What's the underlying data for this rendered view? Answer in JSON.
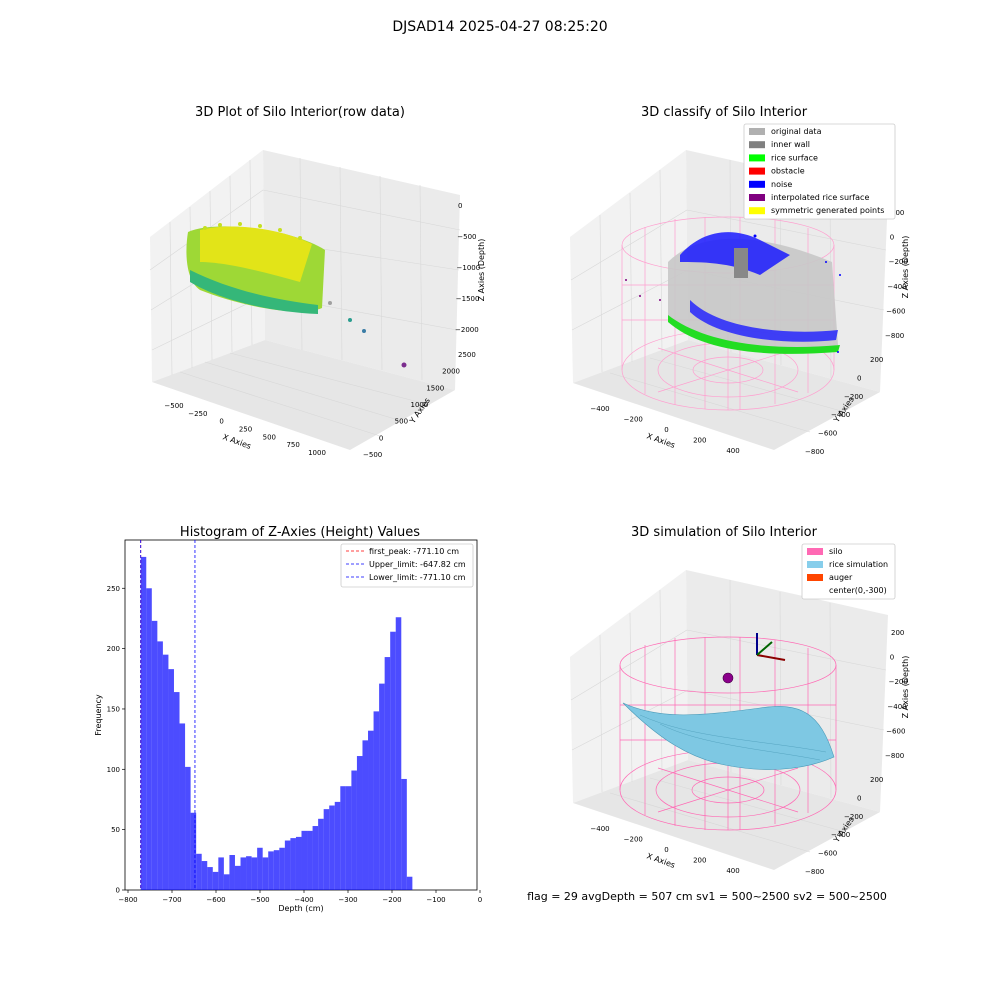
{
  "figure": {
    "title": "DJSAD14 2025-04-27 08:25:20",
    "status_line": "flag = 29  avgDepth = 507 cm  sv1 = 500~2500  sv2 = 500~2500"
  },
  "panels": {
    "raw": {
      "title": "3D Plot of Silo Interior(row data)",
      "xlabel": "X Axies",
      "ylabel": "Y Axies",
      "zlabel": "Z Axies (Depth)",
      "xticks": [
        "−500",
        "−250",
        "0",
        "250",
        "500",
        "750",
        "1000"
      ],
      "yticks": [
        "−500",
        "0",
        "500",
        "1000",
        "1500",
        "2000",
        "2500"
      ],
      "zticks": [
        "0",
        "−500",
        "−1000",
        "−1500",
        "−2000"
      ]
    },
    "classify": {
      "title": "3D classify of Silo Interior",
      "xlabel": "X Axies",
      "ylabel": "Y Axies",
      "zlabel": "Z Axies (Depth)",
      "xticks": [
        "−400",
        "−200",
        "0",
        "200",
        "400"
      ],
      "yticks": [
        "200",
        "0",
        "−200",
        "−400",
        "−600",
        "−800"
      ],
      "zticks": [
        "200",
        "0",
        "−200",
        "−400",
        "−600",
        "−800"
      ],
      "legend": [
        {
          "label": "original data",
          "color": "#b0b0b0"
        },
        {
          "label": "inner wall",
          "color": "#808080"
        },
        {
          "label": "rice surface",
          "color": "#00ff00"
        },
        {
          "label": "obstacle",
          "color": "#ff0000"
        },
        {
          "label": "noise",
          "color": "#0000ff"
        },
        {
          "label": "interpolated rice surface",
          "color": "#800080"
        },
        {
          "label": "symmetric generated points",
          "color": "#ffff00"
        }
      ]
    },
    "simulation": {
      "title": "3D simulation of Silo Interior",
      "xlabel": "X Axies",
      "ylabel": "Y Axies",
      "zlabel": "Z Axies (Depth)",
      "xticks": [
        "−400",
        "−200",
        "0",
        "200",
        "400"
      ],
      "yticks": [
        "200",
        "0",
        "−200",
        "−400",
        "−600",
        "−800"
      ],
      "zticks": [
        "200",
        "0",
        "−200",
        "−400",
        "−600",
        "−800"
      ],
      "legend": [
        {
          "label": "silo",
          "color": "#ff69b4"
        },
        {
          "label": "rice simulation",
          "color": "#87ceeb"
        },
        {
          "label": "auger",
          "color": "#ff4500"
        },
        {
          "label": "center(0,-300)",
          "color": ""
        }
      ]
    }
  },
  "chart_data": {
    "type": "bar",
    "title": "Histogram of Z-Axies (Height) Values",
    "xlabel": "Depth (cm)",
    "ylabel": "Frequency",
    "xlim": [
      -800,
      0
    ],
    "ylim": [
      0,
      290
    ],
    "xticks": [
      -800,
      -700,
      -600,
      -500,
      -400,
      -300,
      -200,
      -100,
      0
    ],
    "yticks": [
      0,
      50,
      100,
      150,
      200,
      250
    ],
    "bar_color": "#0000ff",
    "bin_width": 12.6,
    "bin_start": -771.1,
    "values": [
      276,
      250,
      223,
      206,
      195,
      183,
      164,
      138,
      102,
      64,
      30,
      24,
      19,
      15,
      27,
      13,
      29,
      20,
      27,
      28,
      27,
      35,
      27,
      32,
      33,
      35,
      41,
      43,
      44,
      49,
      49,
      53,
      59,
      67,
      70,
      73,
      86,
      86,
      99,
      111,
      124,
      132,
      148,
      171,
      193,
      214,
      226,
      92,
      11
    ],
    "vlines": [
      {
        "name": "first_peak: -771.10 cm",
        "x": -771.1,
        "color": "#ff0000"
      },
      {
        "name": "Upper_limit: -647.82 cm",
        "x": -647.82,
        "color": "#0000ff"
      },
      {
        "name": "Lower_limit: -771.10 cm",
        "x": -771.1,
        "color": "#0000ff"
      }
    ]
  }
}
